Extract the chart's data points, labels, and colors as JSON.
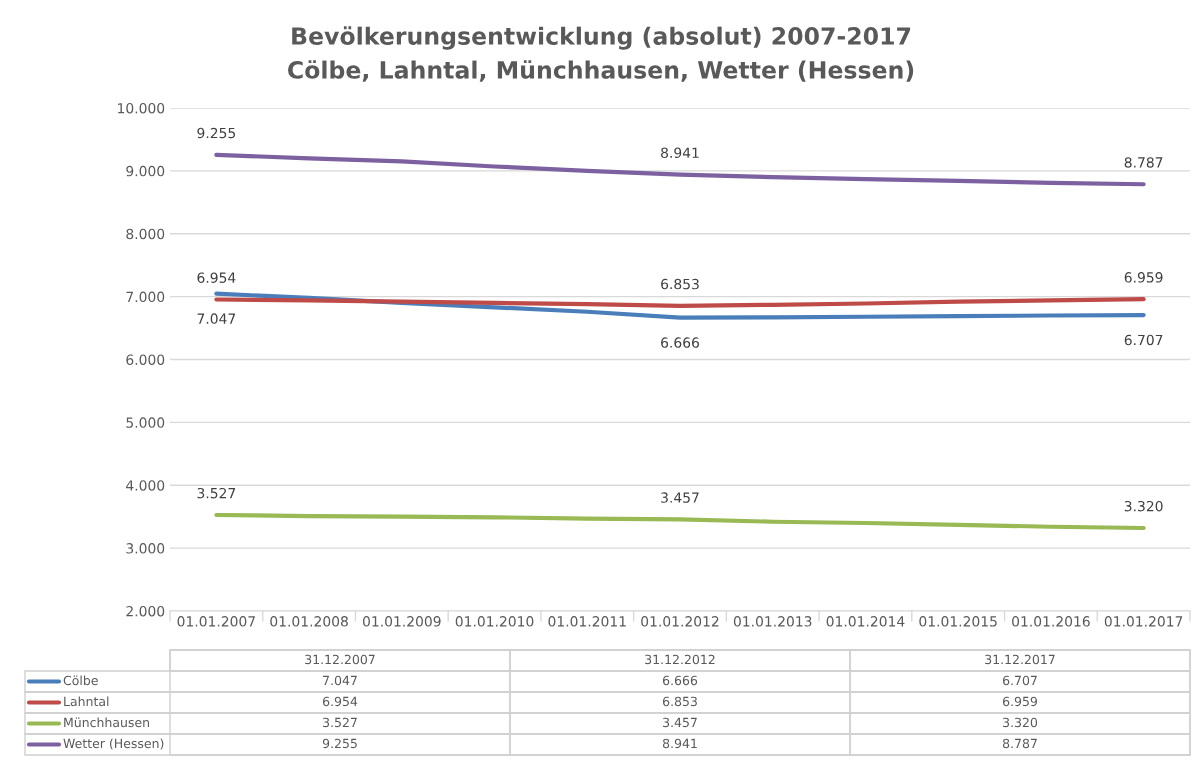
{
  "chart_data": {
    "type": "line",
    "title": "Bevölkerungsentwicklung (absolut) 2007-2017",
    "subtitle": "Cölbe, Lahntal, Münchhausen, Wetter (Hessen)",
    "categories": [
      "01.01.2007",
      "01.01.2008",
      "01.01.2009",
      "01.01.2010",
      "01.01.2011",
      "01.01.2012",
      "01.01.2013",
      "01.01.2014",
      "01.01.2015",
      "01.01.2016",
      "01.01.2017"
    ],
    "series": [
      {
        "name": "Cölbe",
        "color": "#4a7ebb",
        "values": [
          7047,
          6980,
          6900,
          6830,
          6760,
          6666,
          6670,
          6680,
          6690,
          6700,
          6707
        ],
        "value_labels": [
          "7.047",
          null,
          null,
          null,
          null,
          "6.666",
          null,
          null,
          null,
          null,
          "6.707"
        ]
      },
      {
        "name": "Lahntal",
        "color": "#be4b48",
        "values": [
          6954,
          6940,
          6920,
          6900,
          6880,
          6853,
          6870,
          6890,
          6920,
          6940,
          6959
        ],
        "value_labels": [
          "6.954",
          null,
          null,
          null,
          null,
          "6.853",
          null,
          null,
          null,
          null,
          "6.959"
        ]
      },
      {
        "name": "Münchhausen",
        "color": "#98b954",
        "values": [
          3527,
          3510,
          3500,
          3490,
          3470,
          3457,
          3420,
          3400,
          3370,
          3340,
          3320
        ],
        "value_labels": [
          "3.527",
          null,
          null,
          null,
          null,
          "3.457",
          null,
          null,
          null,
          null,
          "3.320"
        ]
      },
      {
        "name": "Wetter (Hessen)",
        "color": "#7d60a0",
        "values": [
          9255,
          9200,
          9150,
          9070,
          9000,
          8941,
          8900,
          8870,
          8840,
          8810,
          8787
        ],
        "value_labels": [
          "9.255",
          null,
          null,
          null,
          null,
          "8.941",
          null,
          null,
          null,
          null,
          "8.787"
        ]
      }
    ],
    "ylim": [
      2000,
      10000
    ],
    "yticks": [
      {
        "value": 2000,
        "label": "2.000"
      },
      {
        "value": 3000,
        "label": "3.000"
      },
      {
        "value": 4000,
        "label": "4.000"
      },
      {
        "value": 5000,
        "label": "5.000"
      },
      {
        "value": 6000,
        "label": "6.000"
      },
      {
        "value": 7000,
        "label": "7.000"
      },
      {
        "value": 8000,
        "label": "8.000"
      },
      {
        "value": 9000,
        "label": "9.000"
      },
      {
        "value": 10000,
        "label": "10.000"
      }
    ],
    "grid": "y",
    "legend": "bottom",
    "line_style": "solid",
    "marker": "none",
    "annotations": [
      "31.12.2007",
      "31.12.2012",
      "31.12.2017"
    ]
  }
}
